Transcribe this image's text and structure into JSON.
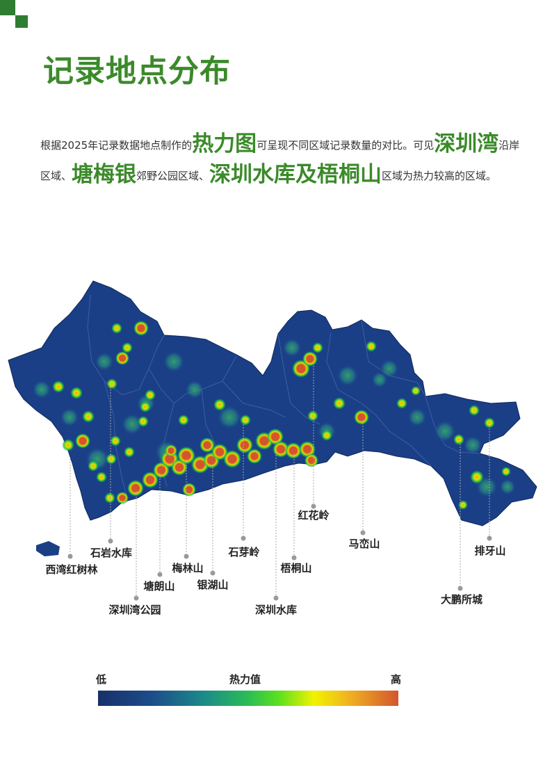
{
  "title": "记录地点分布",
  "intro": {
    "p1": "根据2025年记录数据地点制作的",
    "h1": "热力图",
    "p2": "可呈现不同区域记录数量的对比。可见",
    "h2": "深圳湾",
    "p3": "沿岸区域、",
    "h3": "塘梅银",
    "p4": "郊野公园区域、",
    "h4": "深圳水库及梧桐山",
    "p5": "区域为热力较高的区域。"
  },
  "map": {
    "labels": {
      "xiwan": "西湾红树林",
      "shiyan": "石岩水库",
      "shenzhenwan": "深圳湾公园",
      "tanglang": "塘朗山",
      "meilin": "梅林山",
      "yinhu": "银湖山",
      "shiya": "石芽岭",
      "shuiku": "深圳水库",
      "wutong": "梧桐山",
      "honghua": "红花岭",
      "maluan": "马峦山",
      "dapeng": "大鹏所城",
      "paiya": "排牙山"
    },
    "colors": {
      "land": "#1a3f86",
      "border": "#4566a8",
      "hot": "#d3552e"
    }
  },
  "legend": {
    "low": "低",
    "mid": "热力值",
    "high": "高"
  }
}
